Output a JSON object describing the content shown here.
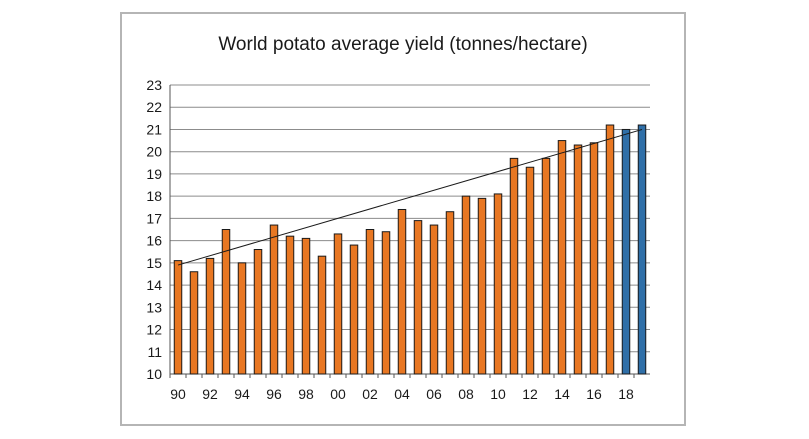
{
  "chart_data": {
    "type": "bar",
    "title": "World potato average yield (tonnes/hectare)",
    "xlabel": "",
    "ylabel": "",
    "ylim": [
      10,
      23
    ],
    "yticks": [
      10,
      11,
      12,
      13,
      14,
      15,
      16,
      17,
      18,
      19,
      20,
      21,
      22,
      23
    ],
    "grid": true,
    "legend": "none",
    "categories": [
      "90",
      "91",
      "92",
      "93",
      "94",
      "95",
      "96",
      "97",
      "98",
      "99",
      "00",
      "01",
      "02",
      "03",
      "04",
      "05",
      "06",
      "07",
      "08",
      "09",
      "10",
      "11",
      "12",
      "13",
      "14",
      "15",
      "16",
      "17",
      "18",
      "19"
    ],
    "category_tick_labels": [
      "90",
      "",
      "92",
      "",
      "94",
      "",
      "96",
      "",
      "98",
      "",
      "00",
      "",
      "02",
      "",
      "04",
      "",
      "06",
      "",
      "08",
      "",
      "10",
      "",
      "12",
      "",
      "14",
      "",
      "16",
      "",
      "18",
      ""
    ],
    "series": [
      {
        "values": [
          15.1,
          14.6,
          15.2,
          16.5,
          15.0,
          15.6,
          16.7,
          16.2,
          16.1,
          15.3,
          16.3,
          15.8,
          16.5,
          16.4,
          17.4,
          16.9,
          16.7,
          17.3,
          18.0,
          17.9,
          18.1,
          19.7,
          19.3,
          19.7,
          20.5,
          20.3,
          20.4,
          21.2,
          21.0,
          21.2
        ],
        "bar_colors": [
          "#e87722",
          "#e87722",
          "#e87722",
          "#e87722",
          "#e87722",
          "#e87722",
          "#e87722",
          "#e87722",
          "#e87722",
          "#e87722",
          "#e87722",
          "#e87722",
          "#e87722",
          "#e87722",
          "#e87722",
          "#e87722",
          "#e87722",
          "#e87722",
          "#e87722",
          "#e87722",
          "#e87722",
          "#e87722",
          "#e87722",
          "#e87722",
          "#e87722",
          "#e87722",
          "#e87722",
          "#e87722",
          "#2f6fa8",
          "#2f6fa8"
        ]
      }
    ],
    "trendline": {
      "type": "linear",
      "start_value": 14.9,
      "end_value": 21.0,
      "color": "#1a1a1a"
    }
  }
}
